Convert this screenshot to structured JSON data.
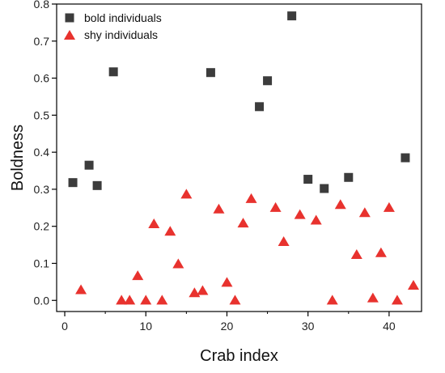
{
  "chart_data": {
    "type": "scatter",
    "xlabel": "Crab index",
    "ylabel": "Boldness",
    "xlim": [
      -1,
      44
    ],
    "ylim": [
      -0.03,
      0.8
    ],
    "xticks": [
      0,
      10,
      20,
      30,
      40
    ],
    "yticks": [
      0.0,
      0.1,
      0.2,
      0.3,
      0.4,
      0.5,
      0.6,
      0.7,
      0.8
    ],
    "xtick_labels": [
      "0",
      "10",
      "20",
      "30",
      "40"
    ],
    "ytick_labels": [
      "0.0",
      "0.1",
      "0.2",
      "0.3",
      "0.4",
      "0.5",
      "0.6",
      "0.7",
      "0.8"
    ],
    "grid": false,
    "legend_position": "top-left",
    "series": [
      {
        "name": "bold individuals",
        "marker": "square",
        "color": "#3c3c3c",
        "x": [
          1,
          3,
          4,
          6,
          18,
          24,
          25,
          28,
          30,
          32,
          35,
          42
        ],
        "y": [
          0.318,
          0.365,
          0.31,
          0.617,
          0.615,
          0.523,
          0.593,
          0.768,
          0.327,
          0.302,
          0.332,
          0.385
        ]
      },
      {
        "name": "shy individuals",
        "marker": "triangle",
        "color": "#e8322e",
        "x": [
          2,
          7,
          8,
          9,
          10,
          11,
          12,
          13,
          14,
          15,
          16,
          17,
          19,
          20,
          21,
          22,
          23,
          26,
          27,
          29,
          31,
          33,
          34,
          36,
          37,
          38,
          39,
          40,
          41,
          43
        ],
        "y": [
          0.03,
          0.002,
          0.002,
          0.068,
          0.002,
          0.208,
          0.002,
          0.188,
          0.1,
          0.288,
          0.022,
          0.028,
          0.248,
          0.05,
          0.002,
          0.21,
          0.276,
          0.252,
          0.16,
          0.233,
          0.218,
          0.002,
          0.26,
          0.125,
          0.238,
          0.008,
          0.13,
          0.252,
          0.002,
          0.042
        ]
      }
    ]
  }
}
